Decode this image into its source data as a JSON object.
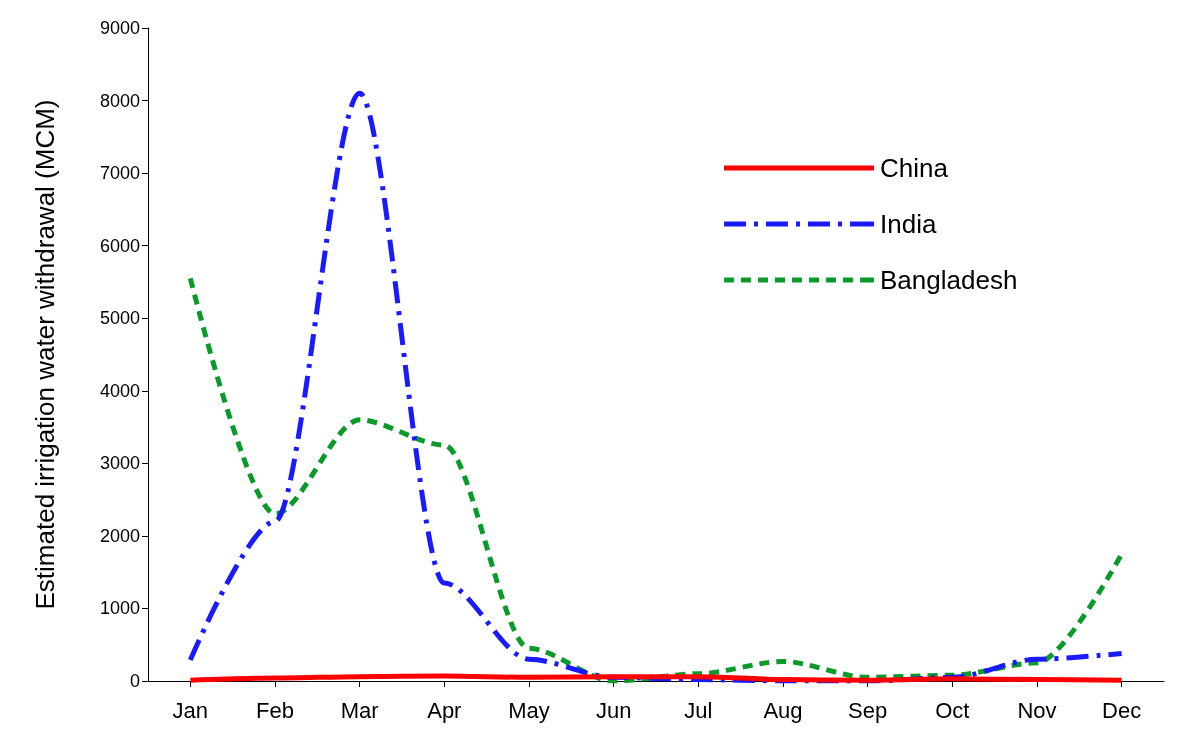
{
  "chart_data": {
    "type": "line",
    "ylabel": "Estimated irrigation water withdrawal (MCM)",
    "categories": [
      "Jan",
      "Feb",
      "Mar",
      "Apr",
      "May",
      "Jun",
      "Jul",
      "Aug",
      "Sep",
      "Oct",
      "Nov",
      "Dec"
    ],
    "ylim": [
      0,
      9000
    ],
    "yticks": [
      0,
      1000,
      2000,
      3000,
      4000,
      5000,
      6000,
      7000,
      8000,
      9000
    ],
    "grid": false,
    "legend": "top right",
    "marker": "none",
    "series": [
      {
        "name": "China",
        "color": "#ff0000",
        "line_style": "solid",
        "values": [
          10,
          40,
          60,
          70,
          50,
          60,
          60,
          20,
          10,
          30,
          20,
          10
        ]
      },
      {
        "name": "India",
        "color": "#1a1aff",
        "line_style": "dashed",
        "values": [
          290,
          2200,
          8100,
          1350,
          300,
          50,
          20,
          0,
          0,
          50,
          300,
          380
        ]
      },
      {
        "name": "Bangladesh",
        "color": "#0a9a2a",
        "line_style": "dotted",
        "values": [
          5550,
          2300,
          3600,
          3250,
          450,
          0,
          100,
          270,
          50,
          80,
          250,
          1750
        ]
      }
    ]
  }
}
